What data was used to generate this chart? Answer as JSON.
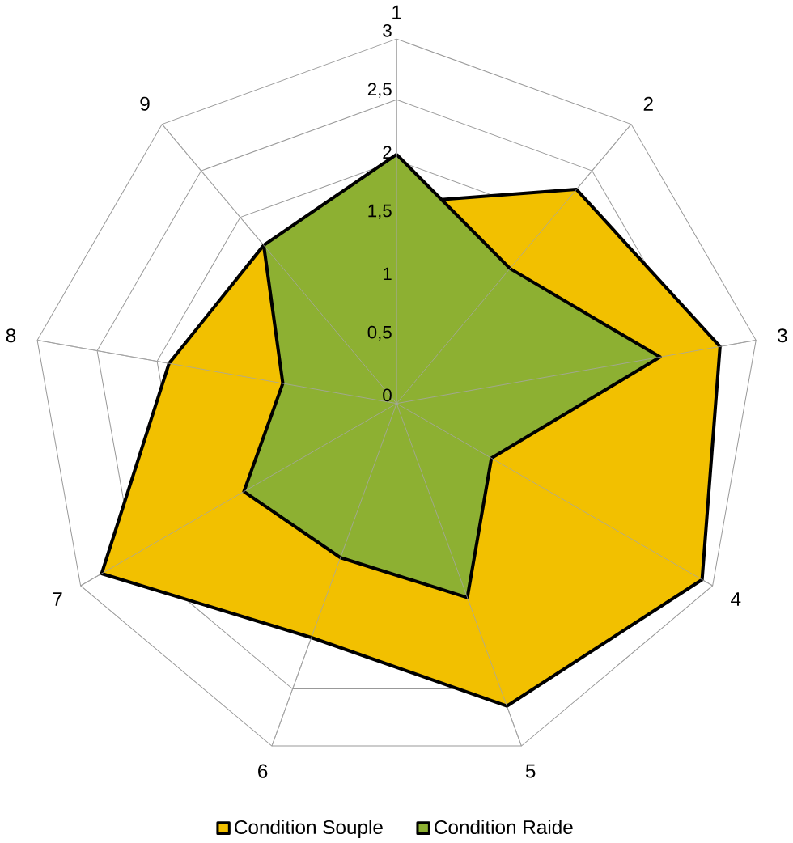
{
  "chart_data": {
    "type": "radar",
    "categories": [
      "1",
      "2",
      "3",
      "4",
      "5",
      "6",
      "7",
      "8",
      "9"
    ],
    "series": [
      {
        "name": "Condition Souple",
        "color": "#f2c000",
        "values": [
          1.65,
          2.3,
          2.7,
          2.9,
          2.65,
          2.05,
          2.8,
          1.9,
          1.7
        ]
      },
      {
        "name": "Condition Raide",
        "color": "#8db032",
        "values": [
          2.05,
          1.45,
          2.2,
          0.9,
          1.7,
          1.35,
          1.45,
          0.95,
          1.7
        ]
      }
    ],
    "ylim": [
      0,
      3
    ],
    "yticks": [
      0,
      {
        "value": 0.5,
        "label": "0,5"
      },
      1,
      {
        "value": 1.5,
        "label": "1,5"
      },
      2,
      {
        "value": 2.5,
        "label": "2,5"
      },
      3
    ],
    "grid": true,
    "legend": "bottom"
  }
}
